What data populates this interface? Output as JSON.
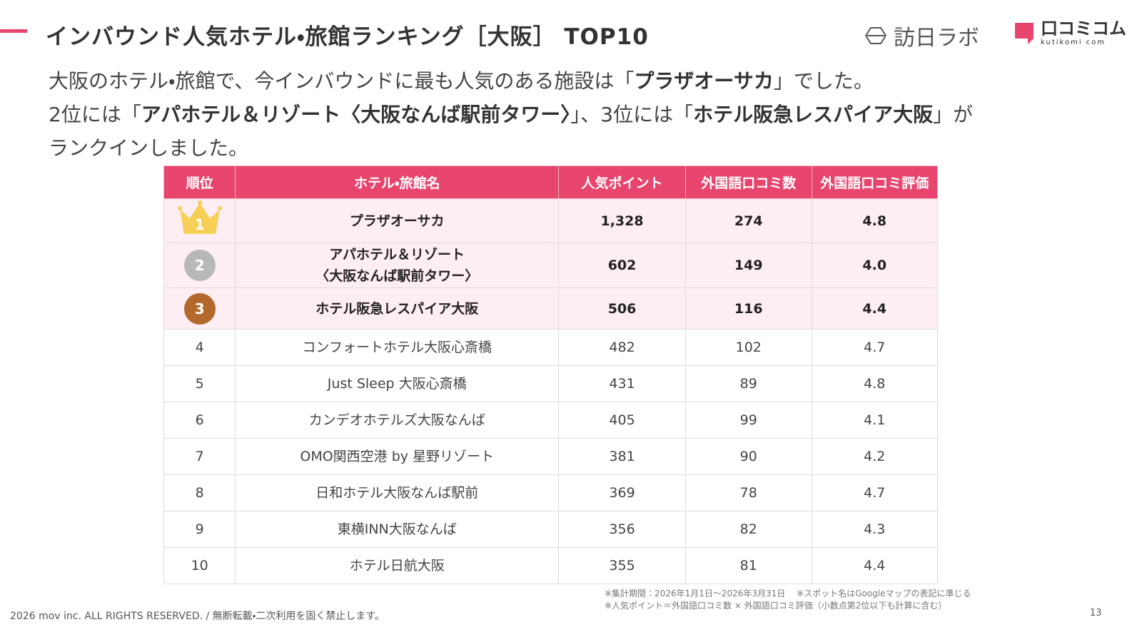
{
  "header": {
    "title": "インバウンド人気ホテル・旅館ランキング［大阪］ TOP10",
    "logo_left": "訪日ラボ",
    "logo_right": "口コミコム",
    "logo_right_sub": "kutikomi com"
  },
  "intro": [
    {
      "text": "大阪のホテル・旅館で、今インバウンドに最も人気のある施設は「",
      "bold": false
    },
    {
      "text": "プラザオーサカ",
      "bold": true
    },
    {
      "text": "」でした。\n2位には「",
      "bold": false
    },
    {
      "text": "アパホテル＆リゾート〈大阪なんば駅前タワー〉",
      "bold": true
    },
    {
      "text": "」、3位には「",
      "bold": false
    },
    {
      "text": "ホテル阪急レスパイア大阪",
      "bold": true
    },
    {
      "text": "」が\nランクインしました。",
      "bold": false
    }
  ],
  "table": {
    "headers": [
      "順位",
      "ホテル・旅館名",
      "人気ポイント",
      "外国語口コミ数",
      "外国語口コミ評価"
    ],
    "rows": [
      [
        "1",
        "プラザオーサカ",
        "1,328",
        "274",
        "4.8"
      ],
      [
        "2",
        "アパホテル＆リゾート\n〈大阪なんば駅前タワー〉",
        "602",
        "149",
        "4.0"
      ],
      [
        "3",
        "ホテル阪急レスパイア大阪",
        "506",
        "116",
        "4.4"
      ],
      [
        "4",
        "コンフォートホテル大阪心斎橋",
        "482",
        "102",
        "4.7"
      ],
      [
        "5",
        "Just Sleep 大阪心斎橋",
        "431",
        "89",
        "4.8"
      ],
      [
        "6",
        "カンデオホテルズ大阪なんば",
        "405",
        "99",
        "4.1"
      ],
      [
        "7",
        "OMO関西空港 by 星野リゾート",
        "381",
        "90",
        "4.2"
      ],
      [
        "8",
        "日和ホテル大阪なんば駅前",
        "369",
        "78",
        "4.7"
      ],
      [
        "9",
        "東横INN大阪なんば",
        "356",
        "82",
        "4.3"
      ],
      [
        "10",
        "ホテル日航大阪",
        "355",
        "81",
        "4.4"
      ]
    ]
  },
  "footer": {
    "notes": [
      "※集計期間：2026年1月1日〜2026年3月31日　 ※スポット名はGoogleマップの表記に準じる",
      "※人気ポイント＝外国語口コミ数 × 外国語口コミ評価（小数点第2位以下も計算に含む）"
    ],
    "copyright": "2026 mov inc. ALL RIGHTS RESERVED. / 無断転載・二次利用を固く禁止します。",
    "page": "13"
  }
}
